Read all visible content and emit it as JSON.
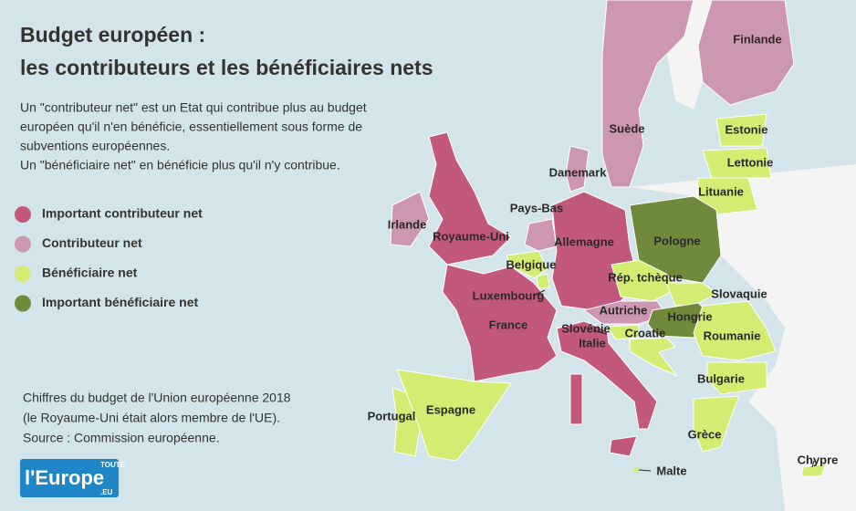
{
  "header": {
    "title": [
      "Budget européen :",
      "les contributeurs et les bénéficiaires nets"
    ],
    "description": [
      "Un \"contributeur net\" est un Etat qui contribue plus au budget",
      "européen qu'il n'en bénéficie, essentiellement sous forme de",
      "subventions européennes.",
      "Un \"bénéficiaire net\" en bénéficie plus qu'il n'y contribue."
    ]
  },
  "legend": {
    "items": [
      {
        "label": "Important contributeur net",
        "color": "#c2587c",
        "countries": [
          "Royaume-Uni",
          "Allemagne",
          "France",
          "Italie"
        ]
      },
      {
        "label": "Contributeur net",
        "color": "#cd96b3",
        "countries": [
          "Finlande",
          "Suède",
          "Danemark",
          "Irlande",
          "Pays-Bas",
          "Autriche"
        ]
      },
      {
        "label": "Bénéficiaire net",
        "color": "#d3ec72",
        "countries": [
          "Estonie",
          "Lettonie",
          "Lituanie",
          "Belgique",
          "Luxembourg",
          "Rép. tchèque",
          "Slovaquie",
          "Slovénie",
          "Croatie",
          "Roumanie",
          "Bulgarie",
          "Grèce",
          "Espagne",
          "Portugal",
          "Malte",
          "Chypre"
        ]
      },
      {
        "label": "Important bénéficiaire net",
        "color": "#6f8a3a",
        "countries": [
          "Pologne",
          "Hongrie"
        ]
      }
    ]
  },
  "source": [
    "Chiffres du budget de l'Union européenne 2018",
    "(le Royaume-Uni était alors membre de l'UE).",
    "Source : Commission européenne."
  ],
  "logo": {
    "top": "TOUTE",
    "main": "l'Europe",
    "suffix": ".EU"
  }
}
